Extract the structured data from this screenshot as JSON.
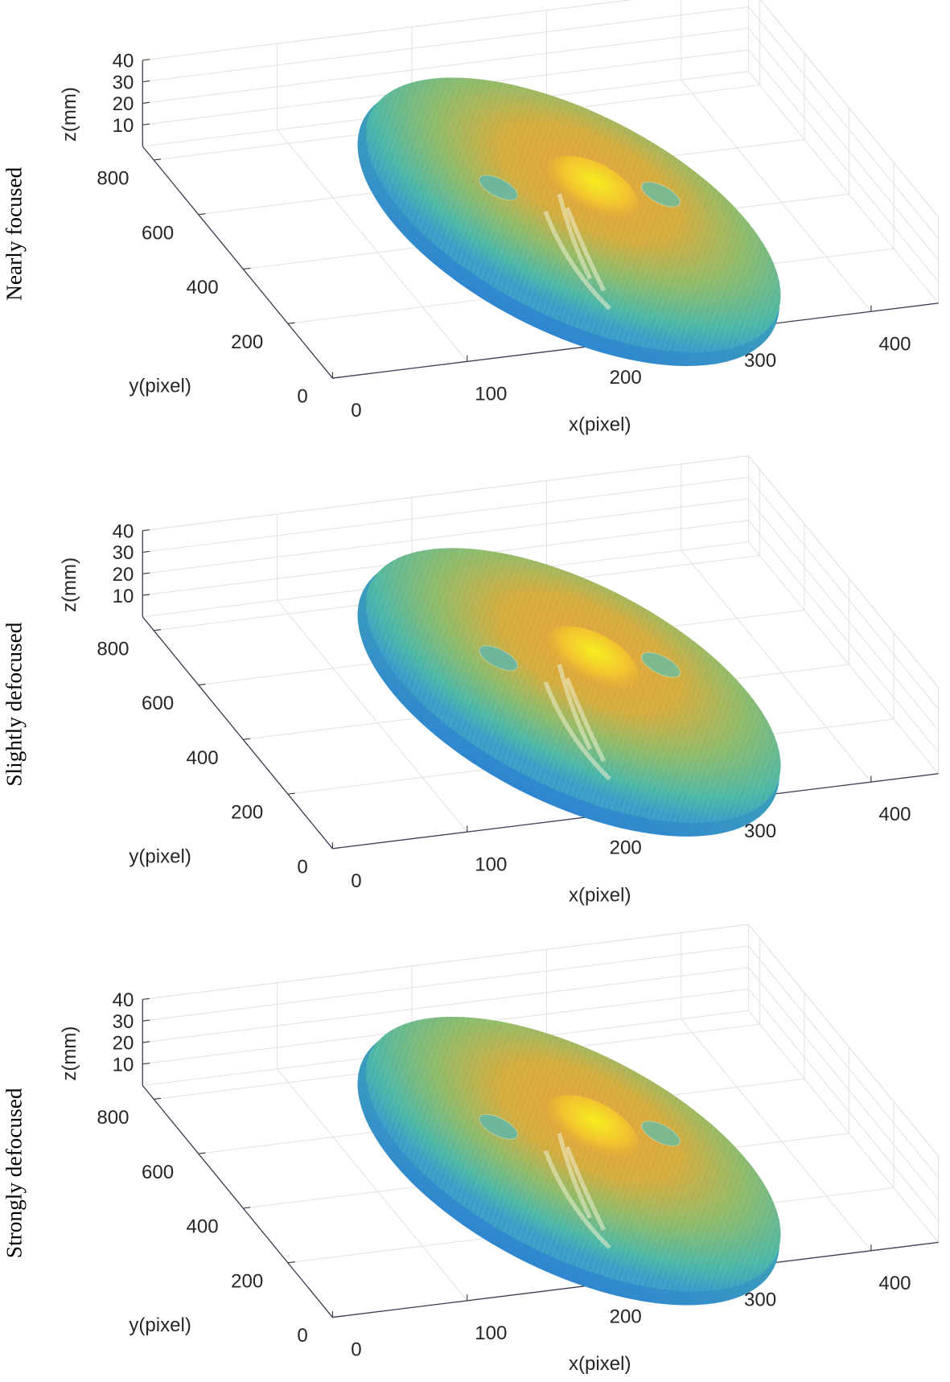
{
  "chart_data": [
    {
      "type": "surface",
      "title": "Nearly focused",
      "xlabel": "x(pixel)",
      "ylabel": "y(pixel)",
      "zlabel": "z(mm)",
      "xlim": [
        0,
        450
      ],
      "ylim": [
        0,
        850
      ],
      "zlim": [
        0,
        40
      ],
      "xticks": [
        0,
        100,
        200,
        300,
        400
      ],
      "yticks": [
        0,
        200,
        400,
        600,
        800
      ],
      "zticks": [
        10,
        20,
        30,
        40
      ],
      "grid": true
    },
    {
      "type": "surface",
      "title": "Slightly defocused",
      "xlabel": "x(pixel)",
      "ylabel": "y(pixel)",
      "zlabel": "z(mm)",
      "xlim": [
        0,
        450
      ],
      "ylim": [
        0,
        850
      ],
      "zlim": [
        0,
        40
      ],
      "xticks": [
        0,
        100,
        200,
        300,
        400
      ],
      "yticks": [
        0,
        200,
        400,
        600,
        800
      ],
      "zticks": [
        10,
        20,
        30,
        40
      ],
      "grid": true
    },
    {
      "type": "surface",
      "title": "Strongly defocused",
      "xlabel": "x(pixel)",
      "ylabel": "y(pixel)",
      "zlabel": "z(mm)",
      "xlim": [
        0,
        450
      ],
      "ylim": [
        0,
        850
      ],
      "zlim": [
        0,
        40
      ],
      "xticks": [
        0,
        100,
        200,
        300,
        400
      ],
      "yticks": [
        0,
        200,
        400,
        600,
        800
      ],
      "zticks": [
        10,
        20,
        30,
        40
      ],
      "grid": true
    }
  ]
}
